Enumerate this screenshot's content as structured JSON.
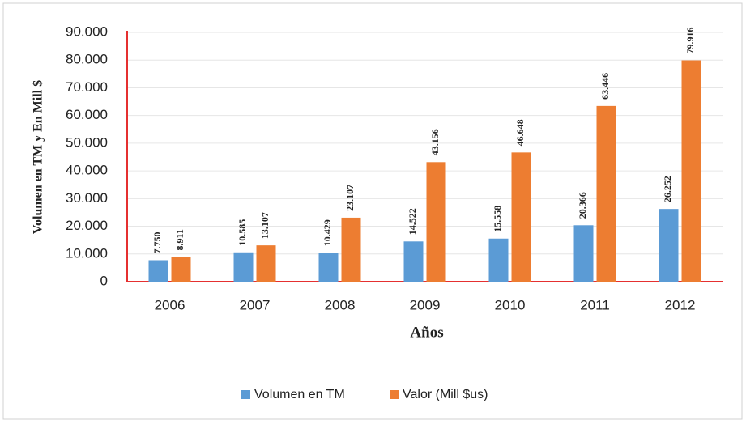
{
  "chart_data": {
    "type": "bar",
    "categories": [
      "2006",
      "2007",
      "2008",
      "2009",
      "2010",
      "2011",
      "2012"
    ],
    "x_label": "Años",
    "y_label": "Volumen en TM y En Mill $",
    "series": [
      {
        "name": "Volumen en TM",
        "color": "#5b9bd5",
        "values": [
          7750,
          10585,
          10429,
          14522,
          15558,
          20366,
          26252
        ],
        "value_labels": [
          "7.750",
          "10.585",
          "10.429",
          "14.522",
          "15.558",
          "20.366",
          "26.252"
        ]
      },
      {
        "name": "Valor (Mill $us)",
        "color": "#ed7d31",
        "values": [
          8911,
          13107,
          23107,
          43156,
          46648,
          63446,
          79916
        ],
        "value_labels": [
          "8.911",
          "13.107",
          "23.107",
          "43.156",
          "46.648",
          "63.446",
          "79.916"
        ]
      }
    ],
    "ylim": [
      0,
      90000
    ],
    "yticks": [
      0,
      {
        "value": 10000,
        "label": "10.000"
      },
      {
        "value": 20000,
        "label": "20.000"
      },
      {
        "value": 30000,
        "label": "30.000"
      },
      {
        "value": 40000,
        "label": "40.000"
      },
      {
        "value": 50000,
        "label": "50.000"
      },
      {
        "value": 60000,
        "label": "60.000"
      },
      {
        "value": 70000,
        "label": "70.000"
      },
      {
        "value": 80000,
        "label": "80.000"
      },
      {
        "value": 90000,
        "label": "90.000"
      }
    ],
    "grid": true,
    "legend": "bottom"
  }
}
